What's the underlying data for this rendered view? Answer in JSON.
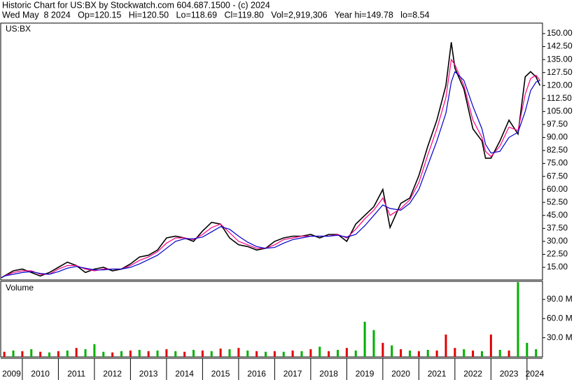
{
  "chart_data": {
    "type": "line",
    "title": "Historic Chart for US:BX by Stockwatch.com 604.687.1500 - (c) 2024",
    "subtitle": "Wed May  8 2024   Op=120.15   Hi=120.50   Lo=118.69   Cl=119.80   Vol=2,919,306   Year hi=149.78   lo=8.54",
    "label": "US:BX",
    "x": [
      2009.42,
      2009.5,
      2009.75,
      2010.0,
      2010.25,
      2010.5,
      2010.75,
      2011.0,
      2011.25,
      2011.5,
      2011.75,
      2012.0,
      2012.25,
      2012.5,
      2012.75,
      2013.0,
      2013.25,
      2013.5,
      2013.75,
      2014.0,
      2014.25,
      2014.5,
      2014.75,
      2015.0,
      2015.25,
      2015.5,
      2015.75,
      2016.0,
      2016.25,
      2016.5,
      2016.75,
      2017.0,
      2017.25,
      2017.5,
      2017.75,
      2018.0,
      2018.25,
      2018.5,
      2018.75,
      2019.0,
      2019.25,
      2019.5,
      2019.75,
      2020.0,
      2020.2,
      2020.5,
      2020.75,
      2021.0,
      2021.25,
      2021.5,
      2021.75,
      2021.9,
      2022.0,
      2022.25,
      2022.5,
      2022.75,
      2022.85,
      2023.0,
      2023.25,
      2023.5,
      2023.75,
      2023.95,
      2024.1,
      2024.25,
      2024.36
    ],
    "series": [
      {
        "color": "#000000",
        "values": [
          9,
          10,
          13,
          14,
          12,
          10,
          12,
          15,
          18,
          16,
          12,
          14,
          15,
          13,
          14,
          17,
          21,
          22,
          25,
          32,
          33,
          32,
          30,
          36,
          41,
          40,
          32,
          28,
          27,
          25,
          26,
          30,
          32,
          33,
          33,
          34,
          32,
          34,
          34,
          30,
          40,
          45,
          50,
          60,
          38,
          52,
          55,
          68,
          85,
          100,
          120,
          145,
          130,
          118,
          95,
          88,
          78,
          78,
          88,
          100,
          92,
          125,
          128,
          125,
          120
        ]
      },
      {
        "color": "#ff0080",
        "values": [
          9,
          10,
          12,
          13,
          13,
          11,
          11,
          14,
          16,
          16,
          14,
          13,
          14,
          14,
          14,
          16,
          19,
          21,
          24,
          29,
          32,
          32,
          31,
          34,
          38,
          40,
          35,
          30,
          28,
          26,
          26,
          28,
          31,
          32,
          33,
          33,
          33,
          33,
          34,
          32,
          37,
          43,
          48,
          55,
          45,
          49,
          54,
          64,
          80,
          95,
          113,
          135,
          132,
          120,
          100,
          90,
          82,
          79,
          85,
          96,
          94,
          115,
          124,
          126,
          123
        ]
      },
      {
        "color": "#0000cc",
        "values": [
          9,
          10,
          11,
          12,
          12.5,
          11.5,
          11,
          12.5,
          14.5,
          15.5,
          14.5,
          13.5,
          13.5,
          14,
          14,
          15,
          17,
          19.5,
          22,
          26,
          30,
          31.5,
          31.5,
          32.5,
          35.5,
          38.5,
          37,
          33,
          29.5,
          27,
          26,
          26.5,
          29,
          31,
          32,
          33,
          33,
          33,
          33.5,
          32.5,
          34,
          39,
          45,
          51,
          49,
          48,
          52,
          60,
          74,
          88,
          104,
          122,
          128,
          123,
          108,
          95,
          86,
          81,
          82,
          90,
          93,
          105,
          117,
          122,
          123
        ]
      }
    ],
    "xlim": [
      2009.4,
      2024.43
    ],
    "xticks": [
      2009,
      2010,
      2011,
      2012,
      2013,
      2014,
      2015,
      2016,
      2017,
      2018,
      2019,
      2020,
      2021,
      2022,
      2023,
      2024
    ],
    "ylim": [
      7.73,
      156.06
    ],
    "yticks": [
      {
        "value": 15,
        "label": "15.00"
      },
      {
        "value": 22.5,
        "label": "22.50"
      },
      {
        "value": 30,
        "label": "30.00"
      },
      {
        "value": 37.5,
        "label": "37.50"
      },
      {
        "value": 45,
        "label": "45.00"
      },
      {
        "value": 52.5,
        "label": "52.50"
      },
      {
        "value": 60,
        "label": "60.00"
      },
      {
        "value": 67.5,
        "label": "67.50"
      },
      {
        "value": 75,
        "label": "75.00"
      },
      {
        "value": 82.5,
        "label": "82.50"
      },
      {
        "value": 90,
        "label": "90.00"
      },
      {
        "value": 97.5,
        "label": "97.50"
      },
      {
        "value": 105,
        "label": "105.00"
      },
      {
        "value": 112.5,
        "label": "112.50"
      },
      {
        "value": 120,
        "label": "120.00"
      },
      {
        "value": 127.5,
        "label": "127.50"
      },
      {
        "value": 135,
        "label": "135.00"
      },
      {
        "value": 142.5,
        "label": "142.50"
      },
      {
        "value": 150,
        "label": "150.00"
      }
    ],
    "volume": {
      "label": "Volume",
      "x": [
        2009.5,
        2009.75,
        2010.0,
        2010.25,
        2010.5,
        2010.75,
        2011.0,
        2011.25,
        2011.5,
        2011.75,
        2012.0,
        2012.25,
        2012.5,
        2012.75,
        2013.0,
        2013.25,
        2013.5,
        2013.75,
        2014.0,
        2014.25,
        2014.5,
        2014.75,
        2015.0,
        2015.25,
        2015.5,
        2015.75,
        2016.0,
        2016.25,
        2016.5,
        2016.75,
        2017.0,
        2017.25,
        2017.5,
        2017.75,
        2018.0,
        2018.25,
        2018.5,
        2018.75,
        2019.0,
        2019.25,
        2019.5,
        2019.75,
        2020.0,
        2020.25,
        2020.5,
        2020.75,
        2021.0,
        2021.25,
        2021.5,
        2021.75,
        2022.0,
        2022.25,
        2022.5,
        2022.75,
        2023.0,
        2023.25,
        2023.5,
        2023.75,
        2024.0,
        2024.25
      ],
      "values": [
        8,
        10,
        9,
        12,
        8,
        7,
        9,
        10,
        14,
        12,
        20,
        8,
        7,
        9,
        10,
        11,
        9,
        10,
        12,
        9,
        8,
        11,
        10,
        9,
        13,
        12,
        14,
        10,
        9,
        8,
        9,
        8,
        10,
        9,
        12,
        16,
        9,
        11,
        14,
        10,
        55,
        42,
        22,
        18,
        12,
        10,
        9,
        11,
        10,
        35,
        14,
        12,
        10,
        9,
        35,
        11,
        10,
        117,
        22,
        12
      ],
      "colors": [
        "#e00000",
        "#00b000",
        "#e00000",
        "#00b000",
        "#e00000",
        "#00b000",
        "#e00000",
        "#00b000",
        "#e00000",
        "#00b000",
        "#00b000",
        "#00b000",
        "#e00000",
        "#00b000",
        "#e00000",
        "#00b000",
        "#e00000",
        "#00b000",
        "#e00000",
        "#00b000",
        "#e00000",
        "#00b000",
        "#e00000",
        "#00b000",
        "#e00000",
        "#00b000",
        "#e00000",
        "#00b000",
        "#e00000",
        "#00b000",
        "#e00000",
        "#00b000",
        "#e00000",
        "#00b000",
        "#e00000",
        "#00b000",
        "#e00000",
        "#00b000",
        "#e00000",
        "#00b000",
        "#00b000",
        "#00b000",
        "#e00000",
        "#00b000",
        "#e00000",
        "#00b000",
        "#e00000",
        "#00b000",
        "#e00000",
        "#e00000",
        "#e00000",
        "#00b000",
        "#e00000",
        "#00b000",
        "#e00000",
        "#00b000",
        "#e00000",
        "#00b000",
        "#00b000",
        "#00b000"
      ],
      "ylim": [
        0,
        118.3
      ],
      "yticks": [
        {
          "value": 30,
          "label": "30.0 M"
        },
        {
          "value": 60,
          "label": "60.0 M"
        },
        {
          "value": 90,
          "label": "90.0 M"
        }
      ]
    }
  }
}
